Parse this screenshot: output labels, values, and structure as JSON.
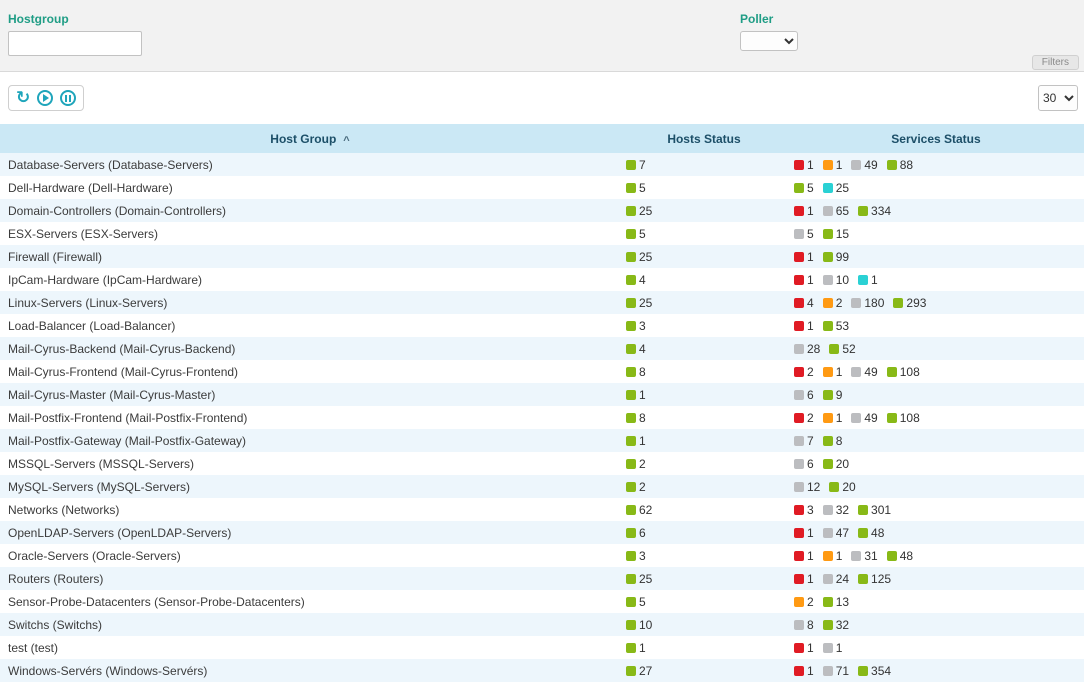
{
  "filters": {
    "hostgroup_label": "Hostgroup",
    "hostgroup_value": "",
    "poller_label": "Poller",
    "poller_selected": "",
    "tab_label": "Filters"
  },
  "toolbar": {
    "page_size": "30"
  },
  "table": {
    "headers": {
      "host_group": "Host Group",
      "hosts_status": "Hosts Status",
      "services_status": "Services Status"
    },
    "sort": {
      "column": "Host Group",
      "direction": "asc",
      "caret": "^"
    },
    "status_colors": {
      "ok": "#88b917",
      "critical": "#e01b24",
      "warning": "#ff9a13",
      "unknown": "#bcbdc0",
      "pending": "#2ad1d4"
    },
    "rows": [
      {
        "name": "Database-Servers (Database-Servers)",
        "hosts": [
          [
            "ok",
            7
          ]
        ],
        "services": [
          [
            "critical",
            1
          ],
          [
            "warning",
            1
          ],
          [
            "unknown",
            49
          ],
          [
            "ok",
            88
          ]
        ]
      },
      {
        "name": "Dell-Hardware (Dell-Hardware)",
        "hosts": [
          [
            "ok",
            5
          ]
        ],
        "services": [
          [
            "ok",
            5
          ],
          [
            "pending",
            25
          ]
        ]
      },
      {
        "name": "Domain-Controllers (Domain-Controllers)",
        "hosts": [
          [
            "ok",
            25
          ]
        ],
        "services": [
          [
            "critical",
            1
          ],
          [
            "unknown",
            65
          ],
          [
            "ok",
            334
          ]
        ]
      },
      {
        "name": "ESX-Servers (ESX-Servers)",
        "hosts": [
          [
            "ok",
            5
          ]
        ],
        "services": [
          [
            "unknown",
            5
          ],
          [
            "ok",
            15
          ]
        ]
      },
      {
        "name": "Firewall (Firewall)",
        "hosts": [
          [
            "ok",
            25
          ]
        ],
        "services": [
          [
            "critical",
            1
          ],
          [
            "ok",
            99
          ]
        ]
      },
      {
        "name": "IpCam-Hardware (IpCam-Hardware)",
        "hosts": [
          [
            "ok",
            4
          ]
        ],
        "services": [
          [
            "critical",
            1
          ],
          [
            "unknown",
            10
          ],
          [
            "pending",
            1
          ]
        ]
      },
      {
        "name": "Linux-Servers (Linux-Servers)",
        "hosts": [
          [
            "ok",
            25
          ]
        ],
        "services": [
          [
            "critical",
            4
          ],
          [
            "warning",
            2
          ],
          [
            "unknown",
            180
          ],
          [
            "ok",
            293
          ]
        ]
      },
      {
        "name": "Load-Balancer (Load-Balancer)",
        "hosts": [
          [
            "ok",
            3
          ]
        ],
        "services": [
          [
            "critical",
            1
          ],
          [
            "ok",
            53
          ]
        ]
      },
      {
        "name": "Mail-Cyrus-Backend (Mail-Cyrus-Backend)",
        "hosts": [
          [
            "ok",
            4
          ]
        ],
        "services": [
          [
            "unknown",
            28
          ],
          [
            "ok",
            52
          ]
        ]
      },
      {
        "name": "Mail-Cyrus-Frontend (Mail-Cyrus-Frontend)",
        "hosts": [
          [
            "ok",
            8
          ]
        ],
        "services": [
          [
            "critical",
            2
          ],
          [
            "warning",
            1
          ],
          [
            "unknown",
            49
          ],
          [
            "ok",
            108
          ]
        ]
      },
      {
        "name": "Mail-Cyrus-Master (Mail-Cyrus-Master)",
        "hosts": [
          [
            "ok",
            1
          ]
        ],
        "services": [
          [
            "unknown",
            6
          ],
          [
            "ok",
            9
          ]
        ]
      },
      {
        "name": "Mail-Postfix-Frontend (Mail-Postfix-Frontend)",
        "hosts": [
          [
            "ok",
            8
          ]
        ],
        "services": [
          [
            "critical",
            2
          ],
          [
            "warning",
            1
          ],
          [
            "unknown",
            49
          ],
          [
            "ok",
            108
          ]
        ]
      },
      {
        "name": "Mail-Postfix-Gateway (Mail-Postfix-Gateway)",
        "hosts": [
          [
            "ok",
            1
          ]
        ],
        "services": [
          [
            "unknown",
            7
          ],
          [
            "ok",
            8
          ]
        ]
      },
      {
        "name": "MSSQL-Servers (MSSQL-Servers)",
        "hosts": [
          [
            "ok",
            2
          ]
        ],
        "services": [
          [
            "unknown",
            6
          ],
          [
            "ok",
            20
          ]
        ]
      },
      {
        "name": "MySQL-Servers (MySQL-Servers)",
        "hosts": [
          [
            "ok",
            2
          ]
        ],
        "services": [
          [
            "unknown",
            12
          ],
          [
            "ok",
            20
          ]
        ]
      },
      {
        "name": "Networks (Networks)",
        "hosts": [
          [
            "ok",
            62
          ]
        ],
        "services": [
          [
            "critical",
            3
          ],
          [
            "unknown",
            32
          ],
          [
            "ok",
            301
          ]
        ]
      },
      {
        "name": "OpenLDAP-Servers (OpenLDAP-Servers)",
        "hosts": [
          [
            "ok",
            6
          ]
        ],
        "services": [
          [
            "critical",
            1
          ],
          [
            "unknown",
            47
          ],
          [
            "ok",
            48
          ]
        ]
      },
      {
        "name": "Oracle-Servers (Oracle-Servers)",
        "hosts": [
          [
            "ok",
            3
          ]
        ],
        "services": [
          [
            "critical",
            1
          ],
          [
            "warning",
            1
          ],
          [
            "unknown",
            31
          ],
          [
            "ok",
            48
          ]
        ]
      },
      {
        "name": "Routers (Routers)",
        "hosts": [
          [
            "ok",
            25
          ]
        ],
        "services": [
          [
            "critical",
            1
          ],
          [
            "unknown",
            24
          ],
          [
            "ok",
            125
          ]
        ]
      },
      {
        "name": "Sensor-Probe-Datacenters (Sensor-Probe-Datacenters)",
        "hosts": [
          [
            "ok",
            5
          ]
        ],
        "services": [
          [
            "warning",
            2
          ],
          [
            "ok",
            13
          ]
        ]
      },
      {
        "name": "Switchs (Switchs)",
        "hosts": [
          [
            "ok",
            10
          ]
        ],
        "services": [
          [
            "unknown",
            8
          ],
          [
            "ok",
            32
          ]
        ]
      },
      {
        "name": "test (test)",
        "hosts": [
          [
            "ok",
            1
          ]
        ],
        "services": [
          [
            "critical",
            1
          ],
          [
            "unknown",
            1
          ]
        ]
      },
      {
        "name": "Windows-Servérs (Windows-Servérs)",
        "hosts": [
          [
            "ok",
            27
          ]
        ],
        "services": [
          [
            "critical",
            1
          ],
          [
            "unknown",
            71
          ],
          [
            "ok",
            354
          ]
        ]
      }
    ]
  }
}
